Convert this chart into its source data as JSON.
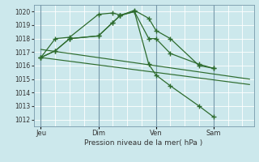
{
  "xlabel": "Pression niveau de la mer( hPa )",
  "ylim": [
    1011.5,
    1020.5
  ],
  "yticks": [
    1012,
    1013,
    1014,
    1015,
    1016,
    1017,
    1018,
    1019,
    1020
  ],
  "bg_color": "#cce8ec",
  "grid_color": "#ffffff",
  "line_color": "#2d6b2d",
  "vline_color": "#7799aa",
  "xtick_labels": [
    "Jeu",
    "Dim",
    "Ven",
    "Sam"
  ],
  "xtick_positions": [
    0,
    40,
    80,
    120
  ],
  "xlim": [
    -5,
    148
  ],
  "series": [
    {
      "x": [
        0,
        10,
        20,
        40,
        50,
        55,
        65,
        75,
        80,
        90,
        110,
        120
      ],
      "y": [
        1016.6,
        1017.1,
        1018.0,
        1018.2,
        1019.2,
        1019.7,
        1020.1,
        1019.5,
        1018.6,
        1018.0,
        1016.0,
        1015.8
      ]
    },
    {
      "x": [
        0,
        10,
        20,
        40,
        50,
        55,
        65,
        75,
        80,
        90,
        110,
        120
      ],
      "y": [
        1016.6,
        1018.0,
        1018.1,
        1019.8,
        1019.9,
        1019.75,
        1020.0,
        1018.0,
        1018.0,
        1016.9,
        1016.1,
        1015.8
      ]
    },
    {
      "x": [
        0,
        10,
        20,
        40,
        50,
        55,
        65,
        75,
        80,
        90,
        110,
        120
      ],
      "y": [
        1016.6,
        1017.1,
        1018.0,
        1018.2,
        1019.2,
        1019.7,
        1020.0,
        1016.1,
        1015.3,
        1014.5,
        1013.0,
        1012.2
      ]
    }
  ],
  "trend_lines": [
    {
      "x": [
        0,
        145
      ],
      "y": [
        1017.2,
        1015.0
      ]
    },
    {
      "x": [
        0,
        145
      ],
      "y": [
        1016.6,
        1014.6
      ]
    }
  ]
}
